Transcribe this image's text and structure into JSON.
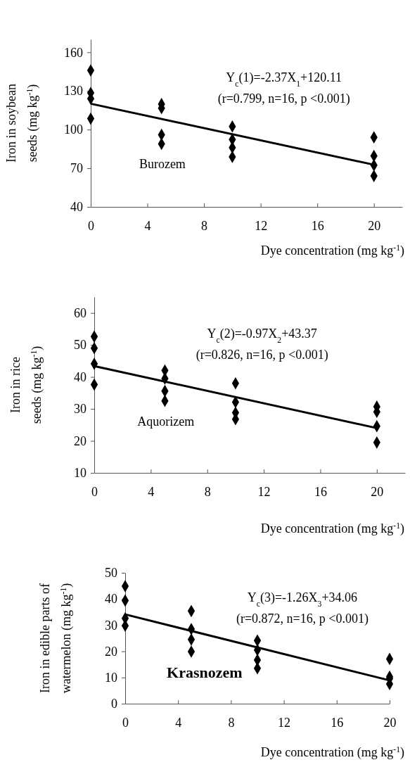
{
  "chart_data": [
    {
      "type": "scatter",
      "xlabel": "Dye concentration (mg kg$^{-1}$)",
      "ylabel": "Iron in soybean seeds (mg kg$^{-1}$)",
      "xlim": [
        0,
        22
      ],
      "xticks": [
        0,
        4,
        8,
        12,
        16,
        20
      ],
      "ylim": [
        40,
        170
      ],
      "yticks": [
        40,
        70,
        100,
        130,
        160
      ],
      "grid": false,
      "marker": "diamond",
      "annotations": [
        "Y$_{c}$(1)=-2.37X$_{1}$+120.11",
        "(r=0.799, n=16, p <0.001)",
        "Burozem"
      ],
      "series": [
        {
          "color": "#000000",
          "x": [
            0,
            0,
            0,
            0,
            5,
            5,
            5,
            5,
            10,
            10,
            10,
            10,
            20,
            20,
            20,
            20
          ],
          "values": [
            145.9,
            128.5,
            124,
            108.5,
            119.8,
            116.6,
            96,
            88.9,
            102.4,
            92.3,
            86,
            78.8,
            94,
            79.6,
            72.3,
            64
          ]
        },
        {
          "type": "line",
          "color": "#000000",
          "marker": "none",
          "line_style": "solid",
          "x": [
            0,
            20
          ],
          "values": [
            120.1,
            72.7
          ]
        }
      ]
    },
    {
      "type": "scatter",
      "xlabel": "Dye concentration (mg kg$^{-1}$)",
      "ylabel": "Iron in rice seeds (mg kg$^{-1}$)",
      "xlim": [
        0,
        22
      ],
      "xticks": [
        0,
        4,
        8,
        12,
        16,
        20
      ],
      "ylim": [
        10,
        65
      ],
      "yticks": [
        10,
        20,
        30,
        40,
        50,
        60
      ],
      "grid": false,
      "marker": "diamond",
      "annotations": [
        "Y$_{c}$(2)=-0.97X$_{2}$+43.37",
        "(r=0.826, n=16, p <0.001)",
        "Aquorizem"
      ],
      "series": [
        {
          "color": "#000000",
          "x": [
            0,
            0,
            0,
            0,
            5,
            5,
            5,
            5,
            10,
            10,
            10,
            10,
            20,
            20,
            20,
            20
          ],
          "values": [
            52.6,
            49.0,
            44.1,
            37.6,
            42.0,
            39.5,
            35.6,
            32.5,
            38.0,
            32.1,
            28.8,
            26.8,
            30.7,
            29.1,
            24.6,
            19.5
          ]
        },
        {
          "type": "line",
          "color": "#000000",
          "marker": "none",
          "line_style": "solid",
          "x": [
            0,
            20
          ],
          "values": [
            43.4,
            24.0
          ]
        }
      ]
    },
    {
      "type": "scatter",
      "xlabel": "Dye concentration (mg kg$^{-1}$)",
      "ylabel": "Iron in edible parts of watermelon (mg kg$^{-1}$)",
      "xlim": [
        0,
        20
      ],
      "xticks": [
        0,
        4,
        8,
        12,
        16,
        20
      ],
      "ylim": [
        0,
        50
      ],
      "yticks": [
        0,
        10,
        20,
        30,
        40,
        50
      ],
      "grid": false,
      "marker": "diamond",
      "annotations": [
        "Y$_{c}$(3)=-1.26X$_{3}$+34.06",
        "(r=0.872, n=16, p <0.001)",
        "Krasnozem"
      ],
      "series": [
        {
          "color": "#000000",
          "x": [
            0,
            0,
            0,
            0,
            5,
            5,
            5,
            5,
            10,
            10,
            10,
            10,
            20,
            20,
            20,
            20
          ],
          "values": [
            44.9,
            39.4,
            32.6,
            29.8,
            35.4,
            28.5,
            24.5,
            19.9,
            24.1,
            20.5,
            16.7,
            13.5,
            17.1,
            10.3,
            9.6,
            7.5
          ]
        },
        {
          "type": "line",
          "color": "#000000",
          "marker": "none",
          "line_style": "solid",
          "x": [
            0,
            20
          ],
          "values": [
            34.1,
            8.9
          ]
        }
      ]
    }
  ]
}
